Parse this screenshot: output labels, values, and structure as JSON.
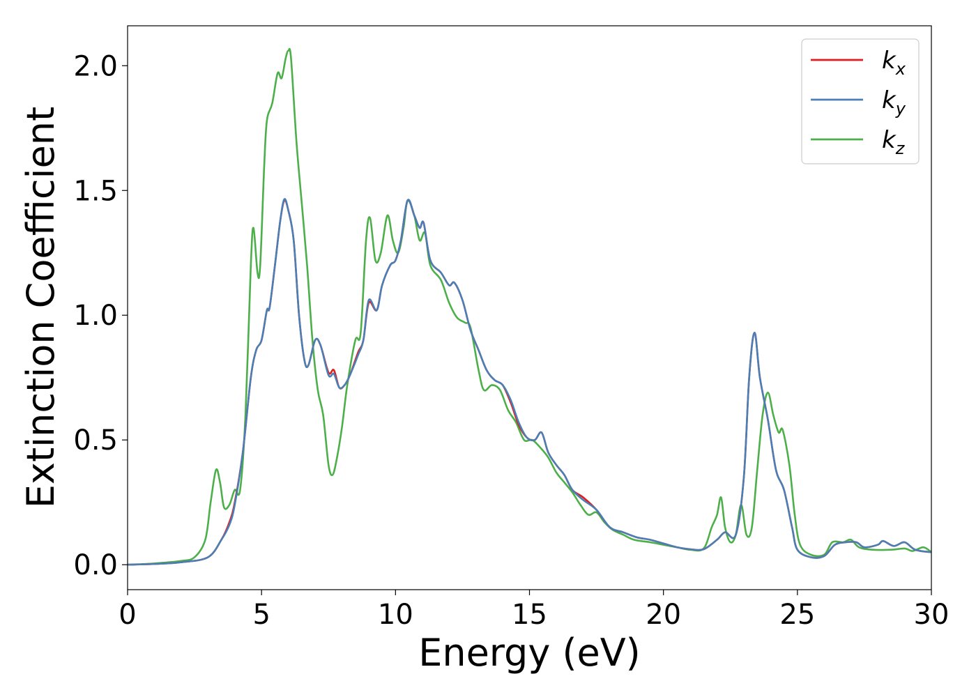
{
  "chart_data": {
    "type": "line",
    "title": "",
    "xlabel": "Energy (eV)",
    "ylabel": "Extinction Coefficient",
    "xlim": [
      0,
      30
    ],
    "ylim": [
      -0.1,
      2.16
    ],
    "xticks": [
      0,
      5,
      10,
      15,
      20,
      25,
      30
    ],
    "xtick_labels": [
      "0",
      "5",
      "10",
      "15",
      "20",
      "25",
      "30"
    ],
    "yticks": [
      0.0,
      0.5,
      1.0,
      1.5,
      2.0
    ],
    "ytick_labels": [
      "0.0",
      "0.5",
      "1.0",
      "1.5",
      "2.0"
    ],
    "grid": false,
    "legend": {
      "position": "top-right"
    },
    "series": [
      {
        "name": "k_x",
        "label_base": "k",
        "label_sub": "x",
        "color": "#e41a1c",
        "points": [
          [
            0,
            0.0
          ],
          [
            1,
            0.003
          ],
          [
            2,
            0.01
          ],
          [
            3,
            0.03
          ],
          [
            3.5,
            0.1
          ],
          [
            3.8,
            0.17
          ],
          [
            4,
            0.25
          ],
          [
            4.3,
            0.45
          ],
          [
            4.6,
            0.75
          ],
          [
            4.8,
            0.86
          ],
          [
            5.0,
            0.9
          ],
          [
            5.2,
            1.02
          ],
          [
            5.3,
            1.03
          ],
          [
            5.5,
            1.2
          ],
          [
            5.7,
            1.38
          ],
          [
            5.85,
            1.46
          ],
          [
            6.0,
            1.42
          ],
          [
            6.2,
            1.3
          ],
          [
            6.4,
            1.0
          ],
          [
            6.6,
            0.82
          ],
          [
            6.75,
            0.8
          ],
          [
            7.0,
            0.9
          ],
          [
            7.2,
            0.88
          ],
          [
            7.5,
            0.77
          ],
          [
            7.7,
            0.78
          ],
          [
            7.9,
            0.71
          ],
          [
            8.1,
            0.72
          ],
          [
            8.3,
            0.76
          ],
          [
            8.6,
            0.85
          ],
          [
            8.8,
            0.9
          ],
          [
            9.0,
            1.05
          ],
          [
            9.3,
            1.02
          ],
          [
            9.5,
            1.12
          ],
          [
            9.8,
            1.2
          ],
          [
            10.0,
            1.22
          ],
          [
            10.2,
            1.3
          ],
          [
            10.45,
            1.46
          ],
          [
            10.7,
            1.4
          ],
          [
            10.9,
            1.35
          ],
          [
            11.05,
            1.37
          ],
          [
            11.3,
            1.22
          ],
          [
            11.7,
            1.17
          ],
          [
            12.0,
            1.12
          ],
          [
            12.2,
            1.13
          ],
          [
            12.5,
            1.06
          ],
          [
            12.8,
            0.94
          ],
          [
            13.1,
            0.86
          ],
          [
            13.4,
            0.78
          ],
          [
            13.7,
            0.74
          ],
          [
            14.0,
            0.72
          ],
          [
            14.3,
            0.65
          ],
          [
            14.6,
            0.56
          ],
          [
            14.9,
            0.51
          ],
          [
            15.2,
            0.5
          ],
          [
            15.45,
            0.53
          ],
          [
            15.7,
            0.45
          ],
          [
            16.0,
            0.4
          ],
          [
            16.3,
            0.36
          ],
          [
            16.6,
            0.3
          ],
          [
            17.0,
            0.27
          ],
          [
            17.5,
            0.22
          ],
          [
            18.0,
            0.15
          ],
          [
            18.5,
            0.13
          ],
          [
            19.0,
            0.11
          ],
          [
            19.5,
            0.1
          ],
          [
            20.0,
            0.085
          ],
          [
            20.5,
            0.07
          ],
          [
            21.0,
            0.062
          ],
          [
            21.5,
            0.062
          ],
          [
            22.0,
            0.1
          ],
          [
            22.3,
            0.13
          ],
          [
            22.7,
            0.12
          ],
          [
            23.0,
            0.35
          ],
          [
            23.2,
            0.75
          ],
          [
            23.4,
            0.93
          ],
          [
            23.6,
            0.75
          ],
          [
            23.9,
            0.58
          ],
          [
            24.2,
            0.38
          ],
          [
            24.5,
            0.3
          ],
          [
            24.8,
            0.15
          ],
          [
            25.0,
            0.06
          ],
          [
            25.5,
            0.03
          ],
          [
            26.0,
            0.035
          ],
          [
            26.4,
            0.08
          ],
          [
            26.8,
            0.09
          ],
          [
            27.2,
            0.09
          ],
          [
            27.5,
            0.07
          ],
          [
            28.0,
            0.08
          ],
          [
            28.2,
            0.095
          ],
          [
            28.6,
            0.075
          ],
          [
            29.0,
            0.09
          ],
          [
            29.4,
            0.06
          ],
          [
            30.0,
            0.05
          ]
        ]
      },
      {
        "name": "k_y",
        "label_base": "k",
        "label_sub": "y",
        "color": "#4a7fb5",
        "points": [
          [
            0,
            0.0
          ],
          [
            1,
            0.003
          ],
          [
            2,
            0.01
          ],
          [
            3,
            0.03
          ],
          [
            3.5,
            0.1
          ],
          [
            3.8,
            0.16
          ],
          [
            4,
            0.24
          ],
          [
            4.3,
            0.45
          ],
          [
            4.6,
            0.75
          ],
          [
            4.8,
            0.86
          ],
          [
            5.0,
            0.9
          ],
          [
            5.2,
            1.02
          ],
          [
            5.3,
            1.03
          ],
          [
            5.5,
            1.2
          ],
          [
            5.7,
            1.38
          ],
          [
            5.85,
            1.465
          ],
          [
            6.0,
            1.42
          ],
          [
            6.2,
            1.3
          ],
          [
            6.4,
            1.0
          ],
          [
            6.6,
            0.82
          ],
          [
            6.75,
            0.8
          ],
          [
            7.0,
            0.9
          ],
          [
            7.2,
            0.88
          ],
          [
            7.5,
            0.76
          ],
          [
            7.7,
            0.765
          ],
          [
            7.9,
            0.71
          ],
          [
            8.1,
            0.72
          ],
          [
            8.3,
            0.76
          ],
          [
            8.6,
            0.84
          ],
          [
            8.8,
            0.9
          ],
          [
            9.0,
            1.06
          ],
          [
            9.3,
            1.02
          ],
          [
            9.5,
            1.12
          ],
          [
            9.8,
            1.2
          ],
          [
            10.0,
            1.22
          ],
          [
            10.2,
            1.3
          ],
          [
            10.45,
            1.46
          ],
          [
            10.7,
            1.4
          ],
          [
            10.9,
            1.35
          ],
          [
            11.05,
            1.37
          ],
          [
            11.3,
            1.22
          ],
          [
            11.7,
            1.17
          ],
          [
            12.0,
            1.12
          ],
          [
            12.2,
            1.13
          ],
          [
            12.5,
            1.06
          ],
          [
            12.8,
            0.94
          ],
          [
            13.1,
            0.86
          ],
          [
            13.4,
            0.78
          ],
          [
            13.7,
            0.74
          ],
          [
            14.0,
            0.72
          ],
          [
            14.3,
            0.66
          ],
          [
            14.6,
            0.57
          ],
          [
            14.9,
            0.51
          ],
          [
            15.2,
            0.5
          ],
          [
            15.45,
            0.53
          ],
          [
            15.7,
            0.45
          ],
          [
            16.0,
            0.4
          ],
          [
            16.3,
            0.36
          ],
          [
            16.6,
            0.3
          ],
          [
            17.0,
            0.26
          ],
          [
            17.5,
            0.22
          ],
          [
            18.0,
            0.15
          ],
          [
            18.5,
            0.13
          ],
          [
            19.0,
            0.11
          ],
          [
            19.5,
            0.1
          ],
          [
            20.0,
            0.085
          ],
          [
            20.5,
            0.07
          ],
          [
            21.0,
            0.062
          ],
          [
            21.5,
            0.062
          ],
          [
            22.0,
            0.1
          ],
          [
            22.3,
            0.13
          ],
          [
            22.7,
            0.12
          ],
          [
            23.0,
            0.35
          ],
          [
            23.2,
            0.75
          ],
          [
            23.4,
            0.93
          ],
          [
            23.6,
            0.75
          ],
          [
            23.9,
            0.58
          ],
          [
            24.2,
            0.38
          ],
          [
            24.5,
            0.3
          ],
          [
            24.8,
            0.15
          ],
          [
            25.0,
            0.06
          ],
          [
            25.5,
            0.03
          ],
          [
            26.0,
            0.035
          ],
          [
            26.4,
            0.08
          ],
          [
            26.8,
            0.09
          ],
          [
            27.2,
            0.09
          ],
          [
            27.5,
            0.07
          ],
          [
            28.0,
            0.08
          ],
          [
            28.2,
            0.095
          ],
          [
            28.6,
            0.075
          ],
          [
            29.0,
            0.09
          ],
          [
            29.4,
            0.06
          ],
          [
            30.0,
            0.05
          ]
        ]
      },
      {
        "name": "k_z",
        "label_base": "k",
        "label_sub": "z",
        "color": "#4daf4a",
        "points": [
          [
            0,
            0.0
          ],
          [
            1,
            0.005
          ],
          [
            2,
            0.015
          ],
          [
            2.5,
            0.03
          ],
          [
            2.9,
            0.1
          ],
          [
            3.1,
            0.25
          ],
          [
            3.3,
            0.38
          ],
          [
            3.45,
            0.33
          ],
          [
            3.6,
            0.23
          ],
          [
            3.8,
            0.24
          ],
          [
            4.0,
            0.3
          ],
          [
            4.2,
            0.3
          ],
          [
            4.4,
            0.6
          ],
          [
            4.6,
            1.2
          ],
          [
            4.7,
            1.35
          ],
          [
            4.85,
            1.17
          ],
          [
            4.95,
            1.2
          ],
          [
            5.1,
            1.6
          ],
          [
            5.2,
            1.78
          ],
          [
            5.4,
            1.85
          ],
          [
            5.6,
            1.97
          ],
          [
            5.75,
            1.95
          ],
          [
            5.9,
            2.03
          ],
          [
            6.0,
            2.06
          ],
          [
            6.1,
            2.03
          ],
          [
            6.3,
            1.7
          ],
          [
            6.5,
            1.45
          ],
          [
            6.7,
            1.2
          ],
          [
            6.9,
            0.9
          ],
          [
            7.1,
            0.7
          ],
          [
            7.3,
            0.6
          ],
          [
            7.5,
            0.4
          ],
          [
            7.65,
            0.36
          ],
          [
            7.8,
            0.42
          ],
          [
            8.0,
            0.55
          ],
          [
            8.2,
            0.72
          ],
          [
            8.5,
            0.9
          ],
          [
            8.7,
            0.93
          ],
          [
            8.9,
            1.3
          ],
          [
            9.05,
            1.39
          ],
          [
            9.25,
            1.22
          ],
          [
            9.45,
            1.25
          ],
          [
            9.7,
            1.4
          ],
          [
            9.9,
            1.3
          ],
          [
            10.1,
            1.25
          ],
          [
            10.3,
            1.35
          ],
          [
            10.45,
            1.46
          ],
          [
            10.7,
            1.4
          ],
          [
            10.9,
            1.3
          ],
          [
            11.1,
            1.33
          ],
          [
            11.3,
            1.2
          ],
          [
            11.7,
            1.14
          ],
          [
            12.0,
            1.05
          ],
          [
            12.3,
            0.99
          ],
          [
            12.6,
            0.97
          ],
          [
            12.8,
            0.95
          ],
          [
            13.1,
            0.78
          ],
          [
            13.3,
            0.7
          ],
          [
            13.6,
            0.72
          ],
          [
            13.9,
            0.7
          ],
          [
            14.2,
            0.62
          ],
          [
            14.5,
            0.57
          ],
          [
            14.8,
            0.5
          ],
          [
            15.1,
            0.5
          ],
          [
            15.4,
            0.47
          ],
          [
            15.7,
            0.43
          ],
          [
            16.0,
            0.37
          ],
          [
            16.3,
            0.33
          ],
          [
            16.6,
            0.29
          ],
          [
            16.9,
            0.24
          ],
          [
            17.2,
            0.2
          ],
          [
            17.5,
            0.21
          ],
          [
            17.8,
            0.17
          ],
          [
            18.1,
            0.14
          ],
          [
            18.5,
            0.12
          ],
          [
            18.9,
            0.1
          ],
          [
            19.5,
            0.09
          ],
          [
            20.0,
            0.08
          ],
          [
            20.5,
            0.07
          ],
          [
            21.0,
            0.06
          ],
          [
            21.5,
            0.065
          ],
          [
            21.8,
            0.15
          ],
          [
            22.0,
            0.2
          ],
          [
            22.15,
            0.27
          ],
          [
            22.3,
            0.15
          ],
          [
            22.5,
            0.09
          ],
          [
            22.7,
            0.12
          ],
          [
            22.9,
            0.24
          ],
          [
            23.1,
            0.12
          ],
          [
            23.3,
            0.15
          ],
          [
            23.5,
            0.38
          ],
          [
            23.7,
            0.6
          ],
          [
            23.9,
            0.69
          ],
          [
            24.1,
            0.6
          ],
          [
            24.3,
            0.53
          ],
          [
            24.45,
            0.54
          ],
          [
            24.7,
            0.4
          ],
          [
            24.9,
            0.2
          ],
          [
            25.1,
            0.08
          ],
          [
            25.5,
            0.04
          ],
          [
            26.0,
            0.04
          ],
          [
            26.3,
            0.09
          ],
          [
            26.7,
            0.09
          ],
          [
            27.0,
            0.1
          ],
          [
            27.3,
            0.07
          ],
          [
            27.8,
            0.06
          ],
          [
            28.5,
            0.06
          ],
          [
            29.0,
            0.065
          ],
          [
            29.3,
            0.055
          ],
          [
            29.7,
            0.07
          ],
          [
            30.0,
            0.05
          ]
        ]
      }
    ]
  }
}
